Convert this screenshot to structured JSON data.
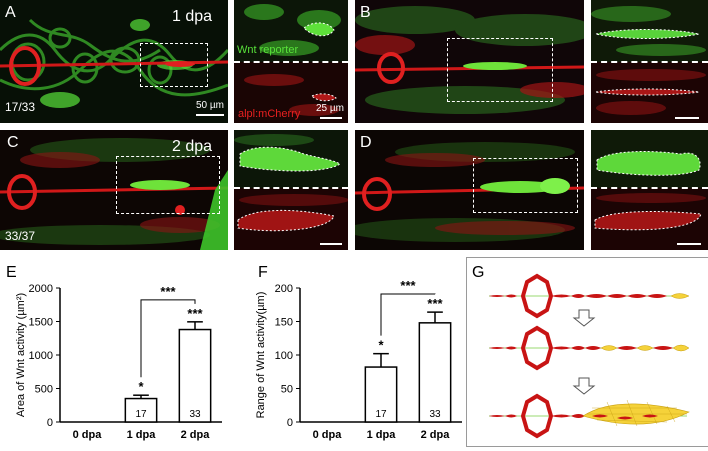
{
  "panels": {
    "A": {
      "label": "A",
      "stage": "1 dpa",
      "count": "17/33",
      "scalebar": "50 µm"
    },
    "A_inset": {
      "top_label": "Wnt reporter",
      "bottom_label": "alpl:mCherry",
      "scalebar": "25 µm"
    },
    "B": {
      "label": "B"
    },
    "C": {
      "label": "C",
      "stage": "2 dpa",
      "count": "33/37"
    },
    "D": {
      "label": "D"
    },
    "E": {
      "label": "E"
    },
    "F": {
      "label": "F"
    },
    "G": {
      "label": "G"
    }
  },
  "chart_data": [
    {
      "type": "bar",
      "panel": "E",
      "categories": [
        "0 dpa",
        "1 dpa",
        "2 dpa"
      ],
      "values": [
        0,
        350,
        1380
      ],
      "errors": [
        0,
        50,
        115
      ],
      "n_labels": [
        "",
        "17",
        "33"
      ],
      "sig_labels": [
        "",
        "*",
        "***"
      ],
      "bracket_label": "***",
      "ylabel": "Area of Wnt activity (µm²)",
      "ylim": [
        0,
        2000
      ],
      "yticks": [
        0,
        500,
        1000,
        1500,
        2000
      ]
    },
    {
      "type": "bar",
      "panel": "F",
      "categories": [
        "0 dpa",
        "1 dpa",
        "2 dpa"
      ],
      "values": [
        0,
        82,
        148
      ],
      "errors": [
        0,
        20,
        16
      ],
      "n_labels": [
        "",
        "17",
        "33"
      ],
      "sig_labels": [
        "",
        "*",
        "***"
      ],
      "bracket_label": "***",
      "ylabel": "Range of Wnt activity(µm)",
      "ylim": [
        0,
        200
      ],
      "yticks": [
        0,
        50,
        100,
        150,
        200
      ]
    }
  ],
  "colors": {
    "wnt_green": "#3fd624",
    "mcherry_red": "#e01818",
    "schematic_red": "#c81414",
    "schematic_yellow": "#f5d23a"
  }
}
